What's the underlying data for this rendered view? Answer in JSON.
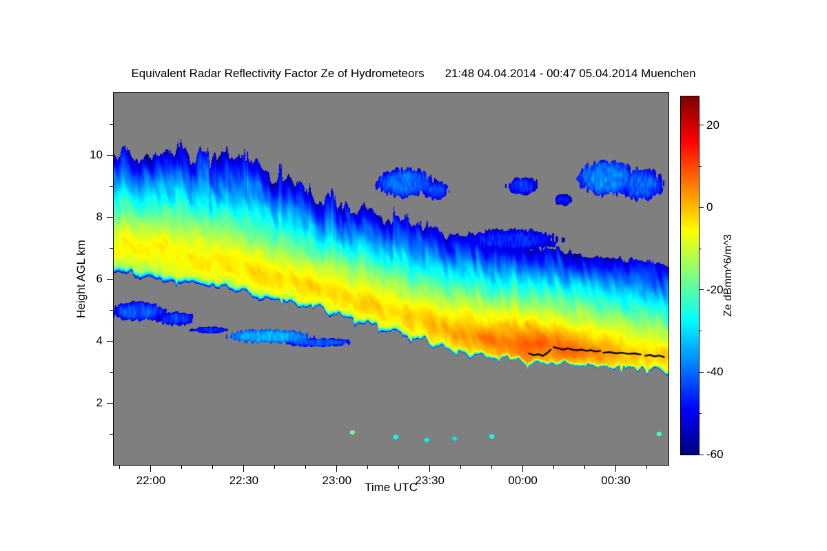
{
  "title": {
    "main": "Equivalent Radar Reflectivity Factor Ze of Hydrometeors",
    "period": "21:48 04.04.2014 - 00:47 05.04.2014 Muenchen"
  },
  "colors": {
    "plot_background": "#7f7f7f",
    "frame": "#000000",
    "page_background": "#ffffff",
    "trace": "#000000"
  },
  "chart_data": {
    "type": "heatmap",
    "title": "Equivalent Radar Reflectivity Factor Ze of Hydrometeors 21:48 04.04.2014 - 00:47 05.04.2014 Muenchen",
    "xlabel": "Time UTC",
    "ylabel": "Height AGL km",
    "colorbar_label": "Ze dBmm^6/m^3",
    "colormap": "jet",
    "background_color": "#7f7f7f",
    "x_time_start": "21:48",
    "x_time_end": "00:47",
    "x_total_minutes": 179,
    "x_ticks": [
      {
        "label": "22:00",
        "minute": 12
      },
      {
        "label": "22:30",
        "minute": 42
      },
      {
        "label": "23:00",
        "minute": 72
      },
      {
        "label": "23:30",
        "minute": 102
      },
      {
        "label": "00:00",
        "minute": 132
      },
      {
        "label": "00:30",
        "minute": 162
      }
    ],
    "x_minor_ticks_minutes": [
      2,
      22,
      32,
      52,
      62,
      82,
      92,
      112,
      122,
      142,
      152,
      172
    ],
    "ylim": [
      0,
      12
    ],
    "y_ticks_km": [
      2,
      4,
      6,
      8,
      10
    ],
    "y_minor_ticks_km": [
      1,
      3,
      5,
      7,
      9,
      11
    ],
    "zlim": [
      -60,
      27
    ],
    "z_ticks": [
      20,
      0,
      -20,
      -40,
      -60
    ],
    "z_minor_ticks": [
      10,
      -10,
      -30,
      -50
    ],
    "main_cloud": {
      "t_minutes": [
        0,
        15,
        30,
        45,
        60,
        75,
        90,
        105,
        120,
        135,
        150,
        165,
        179
      ],
      "top_km": [
        10.1,
        10.0,
        10.0,
        9.6,
        8.9,
        8.3,
        7.9,
        7.5,
        7.2,
        7.0,
        6.8,
        6.6,
        6.4
      ],
      "base_km": [
        6.2,
        6.05,
        5.85,
        5.5,
        5.15,
        4.75,
        4.3,
        3.8,
        3.5,
        3.3,
        3.2,
        3.1,
        3.0
      ],
      "ze_max_height_km": [
        7.3,
        7.1,
        6.7,
        6.3,
        5.9,
        5.5,
        5.0,
        4.5,
        4.1,
        3.9,
        3.7,
        3.6,
        3.5
      ],
      "ze_max_dbz": [
        -6,
        -5,
        -4,
        -4,
        -3,
        -3,
        -2,
        0,
        5,
        8,
        6,
        1,
        -2
      ],
      "top_roughness_km": [
        0.55,
        0.5,
        0.5,
        0.45,
        0.4,
        0.35,
        0.3,
        0.25,
        0.2,
        0.2,
        0.15,
        0.15,
        0.15
      ]
    },
    "detached_clouds": [
      {
        "t": 8,
        "h": 4.95,
        "rt": 9,
        "rh": 0.3,
        "ze": -42
      },
      {
        "t": 20,
        "h": 4.72,
        "rt": 6,
        "rh": 0.22,
        "ze": -44
      },
      {
        "t": 31,
        "h": 4.35,
        "rt": 6,
        "rh": 0.1,
        "ze": -46
      },
      {
        "t": 50,
        "h": 4.15,
        "rt": 13,
        "rh": 0.22,
        "ze": -34
      },
      {
        "t": 66,
        "h": 3.95,
        "rt": 11,
        "rh": 0.14,
        "ze": -42
      },
      {
        "t": 94,
        "h": 9.1,
        "rt": 9,
        "rh": 0.45,
        "ze": -40
      },
      {
        "t": 104,
        "h": 8.85,
        "rt": 4,
        "rh": 0.3,
        "ze": -44
      },
      {
        "t": 128,
        "h": 7.25,
        "rt": 16,
        "rh": 0.35,
        "ze": -46
      },
      {
        "t": 132,
        "h": 9.0,
        "rt": 5,
        "rh": 0.28,
        "ze": -45
      },
      {
        "t": 145,
        "h": 8.55,
        "rt": 2.5,
        "rh": 0.18,
        "ze": -48
      },
      {
        "t": 159,
        "h": 9.25,
        "rt": 9,
        "rh": 0.55,
        "ze": -38
      },
      {
        "t": 170,
        "h": 9.05,
        "rt": 7,
        "rh": 0.5,
        "ze": -41
      }
    ],
    "low_level_specks": [
      {
        "t": 77,
        "h": 1.05,
        "ze": -18
      },
      {
        "t": 91,
        "h": 0.9,
        "ze": -26
      },
      {
        "t": 101,
        "h": 0.8,
        "ze": -28
      },
      {
        "t": 110,
        "h": 0.85,
        "ze": -30
      },
      {
        "t": 122,
        "h": 0.92,
        "ze": -26
      },
      {
        "t": 176,
        "h": 1.0,
        "ze": -22
      }
    ],
    "black_trace_segments": [
      [
        [
          134,
          3.6
        ],
        [
          135.5,
          3.54
        ],
        [
          137,
          3.57
        ],
        [
          138.5,
          3.52
        ],
        [
          140,
          3.62
        ],
        [
          141,
          3.72
        ]
      ],
      [
        [
          142,
          3.8
        ],
        [
          143.5,
          3.76
        ],
        [
          145,
          3.72
        ],
        [
          146.5,
          3.76
        ],
        [
          148,
          3.72
        ],
        [
          149.5,
          3.7
        ],
        [
          151,
          3.72
        ],
        [
          152.5,
          3.68
        ],
        [
          154,
          3.7
        ],
        [
          155.5,
          3.66
        ],
        [
          157,
          3.68
        ]
      ],
      [
        [
          158,
          3.62
        ],
        [
          160,
          3.64
        ],
        [
          162,
          3.6
        ],
        [
          164,
          3.62
        ],
        [
          166,
          3.58
        ],
        [
          168,
          3.6
        ],
        [
          170,
          3.56
        ]
      ],
      [
        [
          171.5,
          3.52
        ],
        [
          173,
          3.55
        ],
        [
          174.5,
          3.5
        ],
        [
          176,
          3.53
        ],
        [
          177.5,
          3.48
        ]
      ]
    ]
  }
}
